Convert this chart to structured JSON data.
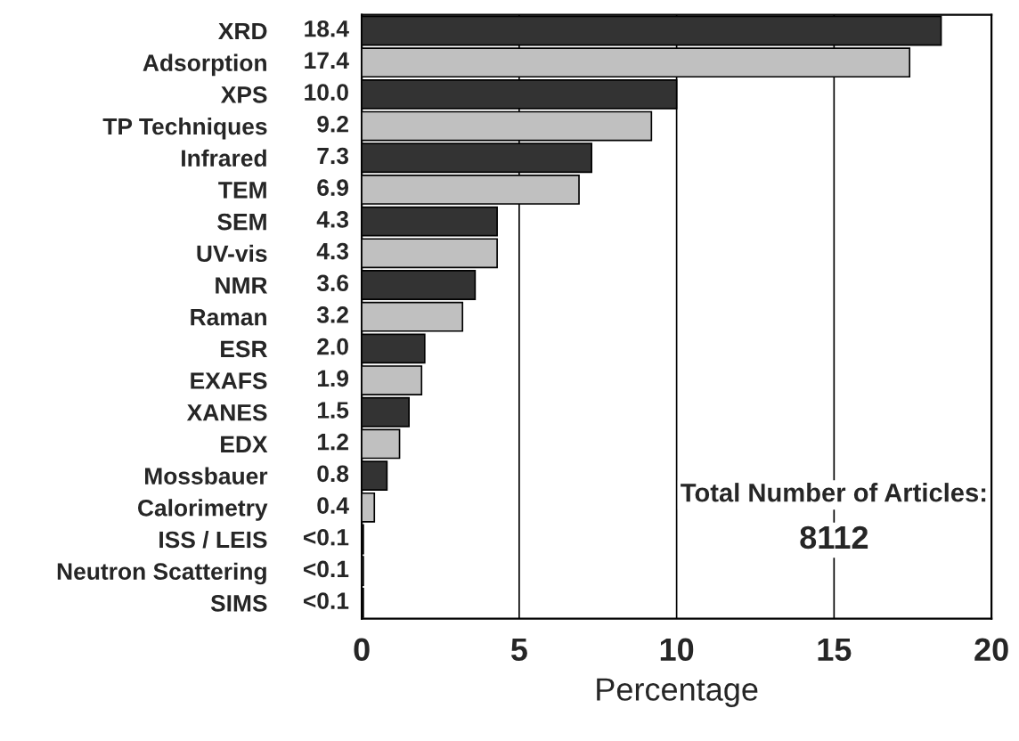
{
  "chart_data": {
    "type": "bar",
    "orientation": "horizontal",
    "xlabel": "Percentage",
    "categories": [
      "XRD",
      "Adsorption",
      "XPS",
      "TP Techniques",
      "Infrared",
      "TEM",
      "SEM",
      "UV-vis",
      "NMR",
      "Raman",
      "ESR",
      "EXAFS",
      "XANES",
      "EDX",
      "Mossbauer",
      "Calorimetry",
      "ISS / LEIS",
      "Neutron Scattering",
      "SIMS"
    ],
    "values": [
      18.4,
      17.4,
      10.0,
      9.2,
      7.3,
      6.9,
      4.3,
      4.3,
      3.6,
      3.2,
      2.0,
      1.9,
      1.5,
      1.2,
      0.8,
      0.4,
      0.05,
      0.05,
      0.05
    ],
    "value_labels": [
      "18.4",
      "17.4",
      "10.0",
      "9.2",
      "7.3",
      "6.9",
      "4.3",
      "4.3",
      "3.6",
      "3.2",
      "2.0",
      "1.9",
      "1.5",
      "1.2",
      "0.8",
      "0.4",
      "<0.1",
      "<0.1",
      "<0.1"
    ],
    "colors": [
      "#333333",
      "#c0c0c0",
      "#333333",
      "#c0c0c0",
      "#333333",
      "#c0c0c0",
      "#333333",
      "#c0c0c0",
      "#333333",
      "#c0c0c0",
      "#333333",
      "#c0c0c0",
      "#333333",
      "#c0c0c0",
      "#333333",
      "#c0c0c0",
      "#333333",
      "#c0c0c0",
      "#333333"
    ],
    "xlim": [
      0,
      20
    ],
    "xticks": [
      0,
      5,
      10,
      15,
      20
    ],
    "grid": "x",
    "annotations": [
      "Total Number of Articles:",
      "8112"
    ]
  }
}
